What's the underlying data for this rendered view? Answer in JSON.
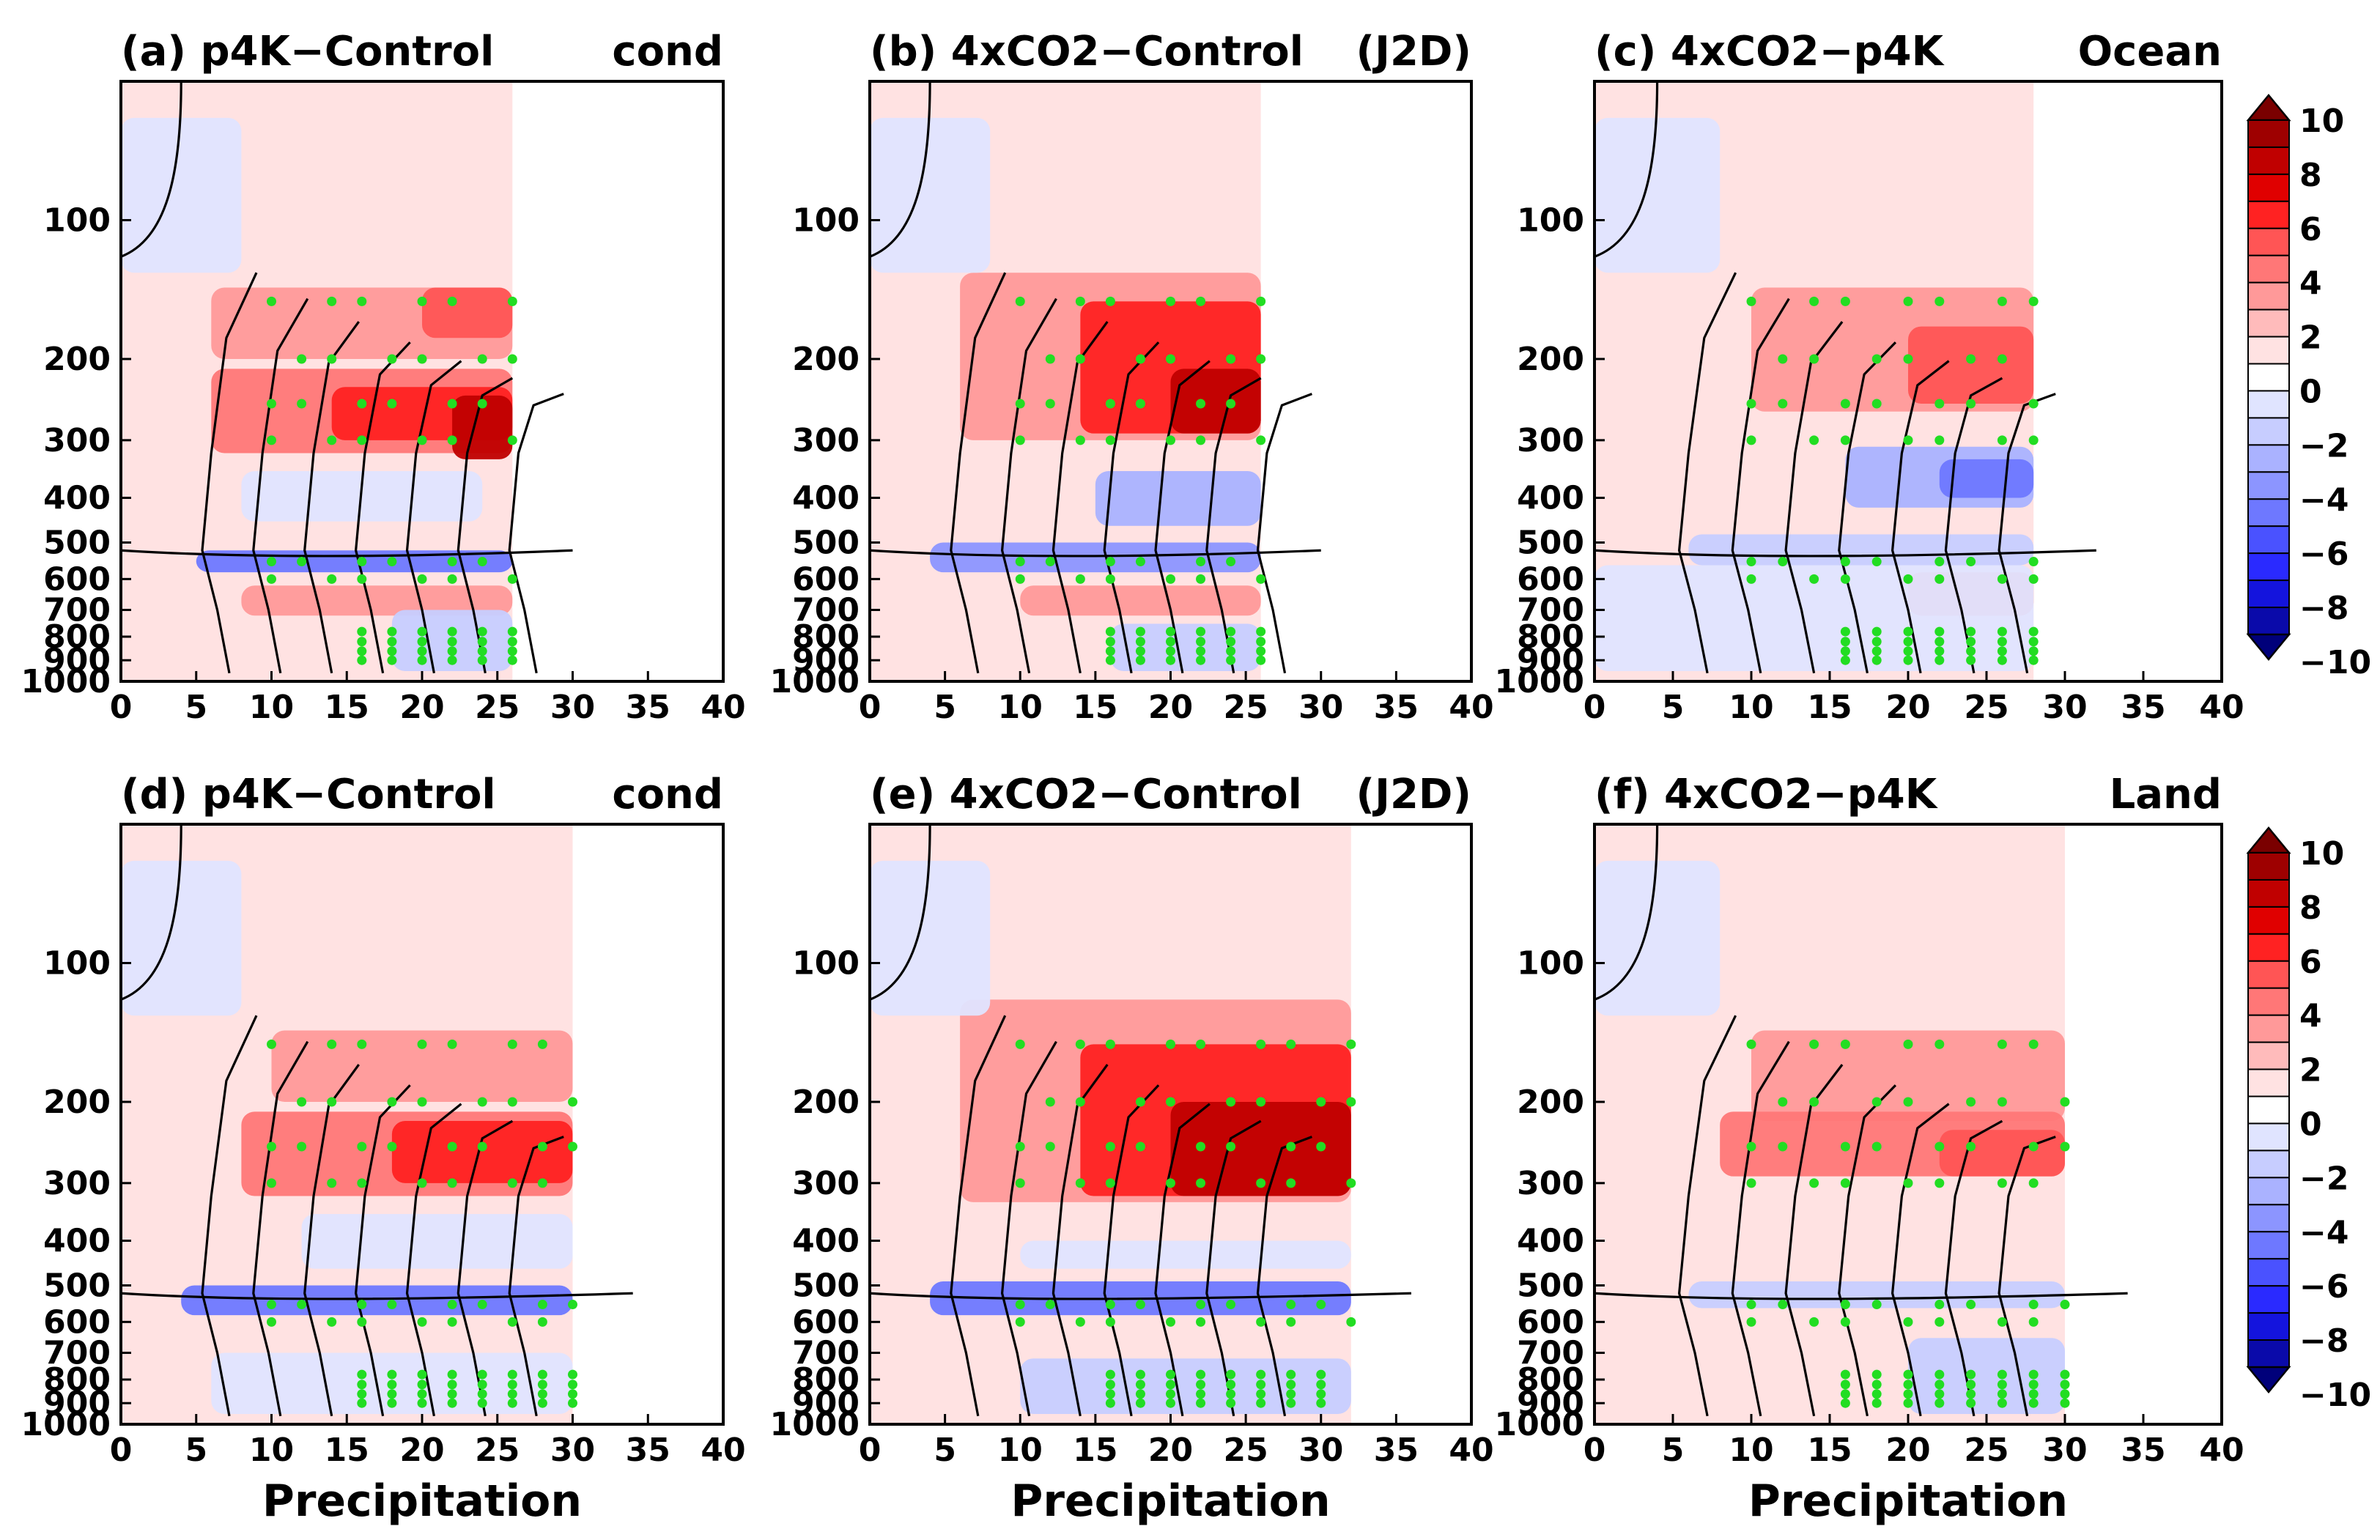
{
  "figure": {
    "xlabel": "Precipitation",
    "xticks": [
      "0",
      "5",
      "10",
      "15",
      "20",
      "25",
      "30",
      "35",
      "40"
    ],
    "yticks": [
      "100",
      "200",
      "300",
      "400",
      "500",
      "600",
      "700",
      "800",
      "900",
      "1000"
    ],
    "stipple_color": "#22dd22"
  },
  "chart_data": [
    {
      "type": "heatmap",
      "id": "a",
      "label": "(a)",
      "title": "p4K−Control",
      "tag": "cond",
      "xlabel": "",
      "xlim": [
        0,
        40
      ],
      "ylim": [
        1000,
        50
      ],
      "y_scale": "log",
      "data_xmax": 26,
      "cells": [
        {
          "x": [
            6,
            26
          ],
          "p": [
            140,
            200
          ],
          "v": 2.5
        },
        {
          "x": [
            20,
            26
          ],
          "p": [
            140,
            180
          ],
          "v": 4.5
        },
        {
          "x": [
            6,
            26
          ],
          "p": [
            210,
            320
          ],
          "v": 3
        },
        {
          "x": [
            14,
            26
          ],
          "p": [
            230,
            300
          ],
          "v": 5
        },
        {
          "x": [
            22,
            26
          ],
          "p": [
            240,
            330
          ],
          "v": 7
        },
        {
          "x": [
            8,
            24
          ],
          "p": [
            350,
            450
          ],
          "v": -1
        },
        {
          "x": [
            5,
            26
          ],
          "p": [
            520,
            580
          ],
          "v": -5
        },
        {
          "x": [
            8,
            26
          ],
          "p": [
            620,
            720
          ],
          "v": 2
        },
        {
          "x": [
            0,
            8
          ],
          "p": [
            60,
            130
          ],
          "v": -0.5
        },
        {
          "x": [
            18,
            26
          ],
          "p": [
            700,
            950
          ],
          "v": -2
        }
      ]
    },
    {
      "type": "heatmap",
      "id": "b",
      "label": "(b)",
      "title": "4xCO2−Control",
      "tag": "(J2D)",
      "xlabel": "",
      "xlim": [
        0,
        40
      ],
      "ylim": [
        1000,
        50
      ],
      "y_scale": "log",
      "data_xmax": 26,
      "cells": [
        {
          "x": [
            6,
            26
          ],
          "p": [
            130,
            300
          ],
          "v": 2.5
        },
        {
          "x": [
            14,
            26
          ],
          "p": [
            150,
            290
          ],
          "v": 5
        },
        {
          "x": [
            20,
            26
          ],
          "p": [
            210,
            290
          ],
          "v": 7
        },
        {
          "x": [
            15,
            26
          ],
          "p": [
            350,
            460
          ],
          "v": -3
        },
        {
          "x": [
            4,
            26
          ],
          "p": [
            500,
            580
          ],
          "v": -4
        },
        {
          "x": [
            10,
            26
          ],
          "p": [
            620,
            720
          ],
          "v": 2.5
        },
        {
          "x": [
            0,
            8
          ],
          "p": [
            60,
            130
          ],
          "v": -0.5
        },
        {
          "x": [
            16,
            26
          ],
          "p": [
            750,
            950
          ],
          "v": -1.5
        }
      ]
    },
    {
      "type": "heatmap",
      "id": "c",
      "label": "(c)",
      "title": "4xCO2−p4K",
      "tag": "Ocean",
      "xlabel": "",
      "xlim": [
        0,
        40
      ],
      "ylim": [
        1000,
        50
      ],
      "y_scale": "log",
      "data_xmax": 28,
      "cells": [
        {
          "x": [
            10,
            28
          ],
          "p": [
            140,
            260
          ],
          "v": 2
        },
        {
          "x": [
            20,
            28
          ],
          "p": [
            170,
            250
          ],
          "v": 4
        },
        {
          "x": [
            16,
            28
          ],
          "p": [
            310,
            420
          ],
          "v": -2.5
        },
        {
          "x": [
            22,
            28
          ],
          "p": [
            330,
            400
          ],
          "v": -4.5
        },
        {
          "x": [
            6,
            28
          ],
          "p": [
            480,
            560
          ],
          "v": -2
        },
        {
          "x": [
            20,
            28
          ],
          "p": [
            580,
            720
          ],
          "v": 3
        },
        {
          "x": [
            0,
            8
          ],
          "p": [
            60,
            130
          ],
          "v": -0.5
        },
        {
          "x": [
            0,
            28
          ],
          "p": [
            560,
            950
          ],
          "v": -0.5
        }
      ]
    },
    {
      "type": "heatmap",
      "id": "d",
      "label": "(d)",
      "title": "p4K−Control",
      "tag": "cond",
      "xlabel": "Precipitation",
      "xlim": [
        0,
        40
      ],
      "ylim": [
        1000,
        50
      ],
      "y_scale": "log",
      "data_xmax": 30,
      "cells": [
        {
          "x": [
            10,
            30
          ],
          "p": [
            140,
            200
          ],
          "v": 2.5
        },
        {
          "x": [
            8,
            30
          ],
          "p": [
            210,
            320
          ],
          "v": 3
        },
        {
          "x": [
            18,
            30
          ],
          "p": [
            220,
            300
          ],
          "v": 5
        },
        {
          "x": [
            12,
            30
          ],
          "p": [
            350,
            460
          ],
          "v": -1
        },
        {
          "x": [
            4,
            30
          ],
          "p": [
            500,
            580
          ],
          "v": -4.5
        },
        {
          "x": [
            6,
            30
          ],
          "p": [
            700,
            950
          ],
          "v": -0.5
        },
        {
          "x": [
            0,
            8
          ],
          "p": [
            60,
            130
          ],
          "v": -0.5
        }
      ]
    },
    {
      "type": "heatmap",
      "id": "e",
      "label": "(e)",
      "title": "4xCO2−Control",
      "tag": "(J2D)",
      "xlabel": "Precipitation",
      "xlim": [
        0,
        40
      ],
      "ylim": [
        1000,
        50
      ],
      "y_scale": "log",
      "data_xmax": 32,
      "cells": [
        {
          "x": [
            6,
            32
          ],
          "p": [
            120,
            330
          ],
          "v": 2.5
        },
        {
          "x": [
            14,
            32
          ],
          "p": [
            150,
            320
          ],
          "v": 5
        },
        {
          "x": [
            20,
            32
          ],
          "p": [
            200,
            320
          ],
          "v": 7.5
        },
        {
          "x": [
            10,
            32
          ],
          "p": [
            400,
            460
          ],
          "v": -1
        },
        {
          "x": [
            4,
            32
          ],
          "p": [
            490,
            580
          ],
          "v": -5
        },
        {
          "x": [
            10,
            32
          ],
          "p": [
            720,
            950
          ],
          "v": -1.5
        },
        {
          "x": [
            0,
            8
          ],
          "p": [
            60,
            130
          ],
          "v": -0.5
        }
      ]
    },
    {
      "type": "heatmap",
      "id": "f",
      "label": "(f)",
      "title": "4xCO2−p4K",
      "tag": "Land",
      "xlabel": "Precipitation",
      "xlim": [
        0,
        40
      ],
      "ylim": [
        1000,
        50
      ],
      "y_scale": "log",
      "data_xmax": 30,
      "cells": [
        {
          "x": [
            10,
            30
          ],
          "p": [
            140,
            220
          ],
          "v": 2
        },
        {
          "x": [
            8,
            30
          ],
          "p": [
            210,
            290
          ],
          "v": 3
        },
        {
          "x": [
            22,
            30
          ],
          "p": [
            230,
            290
          ],
          "v": 4.5
        },
        {
          "x": [
            6,
            30
          ],
          "p": [
            490,
            560
          ],
          "v": -2
        },
        {
          "x": [
            20,
            30
          ],
          "p": [
            650,
            950
          ],
          "v": -1.5
        },
        {
          "x": [
            0,
            8
          ],
          "p": [
            60,
            130
          ],
          "v": -0.5
        }
      ]
    }
  ],
  "colorbar": {
    "ticks": [
      "10",
      "8",
      "6",
      "4",
      "2",
      "0",
      "−2",
      "−4",
      "−6",
      "−8",
      "−10"
    ],
    "levels": [
      10,
      9,
      8,
      7,
      6,
      5,
      4,
      3,
      2,
      1,
      0.5,
      -0.5,
      -1,
      -2,
      -3,
      -4,
      -5,
      -6,
      -7,
      -8,
      -9,
      -10
    ],
    "colors": [
      "#7a0000",
      "#9e0000",
      "#c00000",
      "#e00000",
      "#ff2222",
      "#ff5555",
      "#ff7777",
      "#ff9999",
      "#ffbbbb",
      "#ffe2e2",
      "#ffffff",
      "#e0e4ff",
      "#c7cdff",
      "#aab2ff",
      "#8c95ff",
      "#6e78ff",
      "#4a52ff",
      "#2a2aff",
      "#1414dd",
      "#0a0aaa",
      "#00007a"
    ]
  }
}
